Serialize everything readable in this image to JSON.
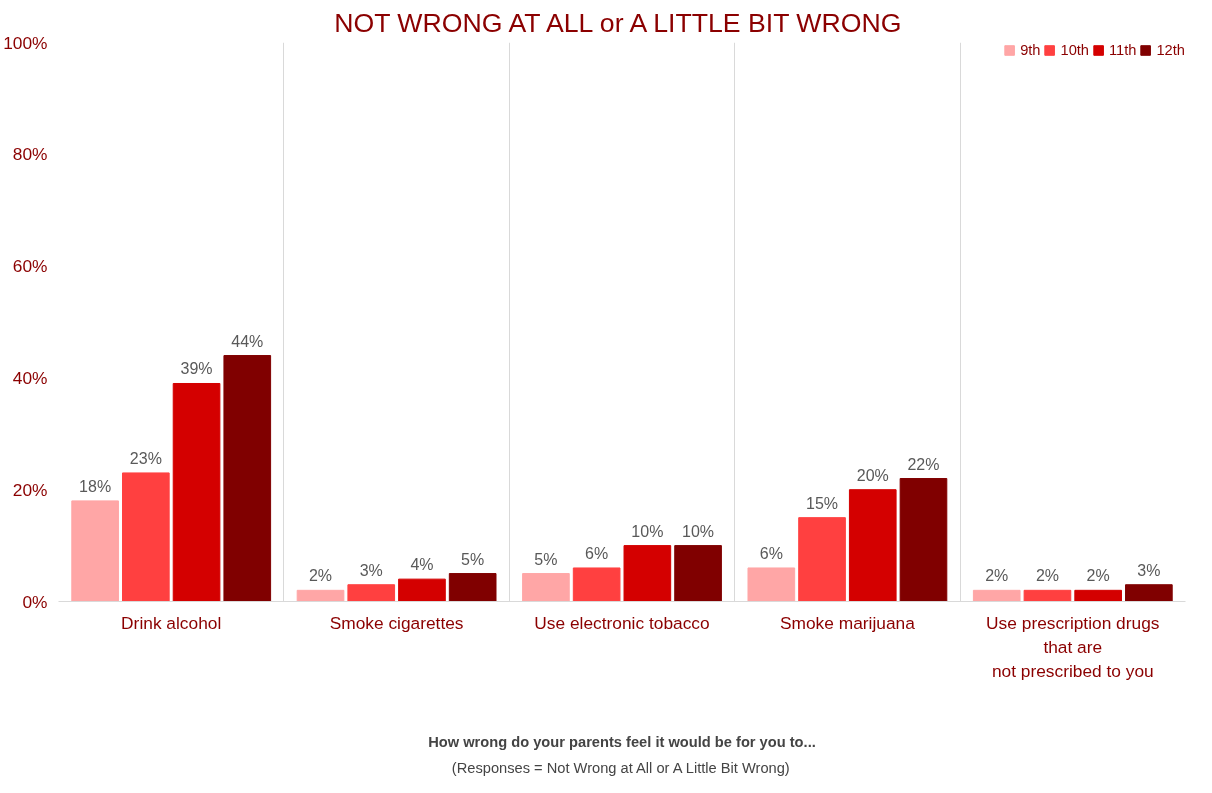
{
  "chart_data": {
    "type": "bar",
    "title": "NOT WRONG AT ALL or A LITTLE BIT WRONG",
    "xlabel": "How wrong do your parents feel it would be for you to...",
    "annotations": [
      "(Responses = Not Wrong at All or A Little Bit Wrong)"
    ],
    "categories": [
      "Drink alcohol",
      "Smoke cigarettes",
      "Use electronic tobacco",
      "Smoke marijuana",
      "Use prescription drugs\nthat are\nnot prescribed to you"
    ],
    "series": [
      {
        "name": "9th",
        "color": "#ffa6a6",
        "values": [
          18,
          2,
          5,
          6,
          2
        ],
        "value_labels": [
          "18%",
          "2%",
          "5%",
          "6%",
          "2%"
        ]
      },
      {
        "name": "10th",
        "color": "#ff4040",
        "values": [
          23,
          3,
          6,
          15,
          2
        ],
        "value_labels": [
          "23%",
          "3%",
          "6%",
          "15%",
          "2%"
        ]
      },
      {
        "name": "11th",
        "color": "#d40000",
        "values": [
          39,
          4,
          10,
          20,
          2
        ],
        "value_labels": [
          "39%",
          "4%",
          "10%",
          "20%",
          "2%"
        ]
      },
      {
        "name": "12th",
        "color": "#800000",
        "values": [
          44,
          5,
          10,
          22,
          3
        ],
        "value_labels": [
          "44%",
          "5%",
          "10%",
          "22%",
          "3%"
        ]
      }
    ],
    "ylim": [
      0,
      100
    ],
    "yticks": [
      {
        "value": 0,
        "label": "0%"
      },
      {
        "value": 20,
        "label": "20%"
      },
      {
        "value": 40,
        "label": "40%"
      },
      {
        "value": 60,
        "label": "60%"
      },
      {
        "value": 80,
        "label": "80%"
      },
      {
        "value": 100,
        "label": "100%"
      }
    ],
    "grid": "x",
    "legend": "top right"
  }
}
